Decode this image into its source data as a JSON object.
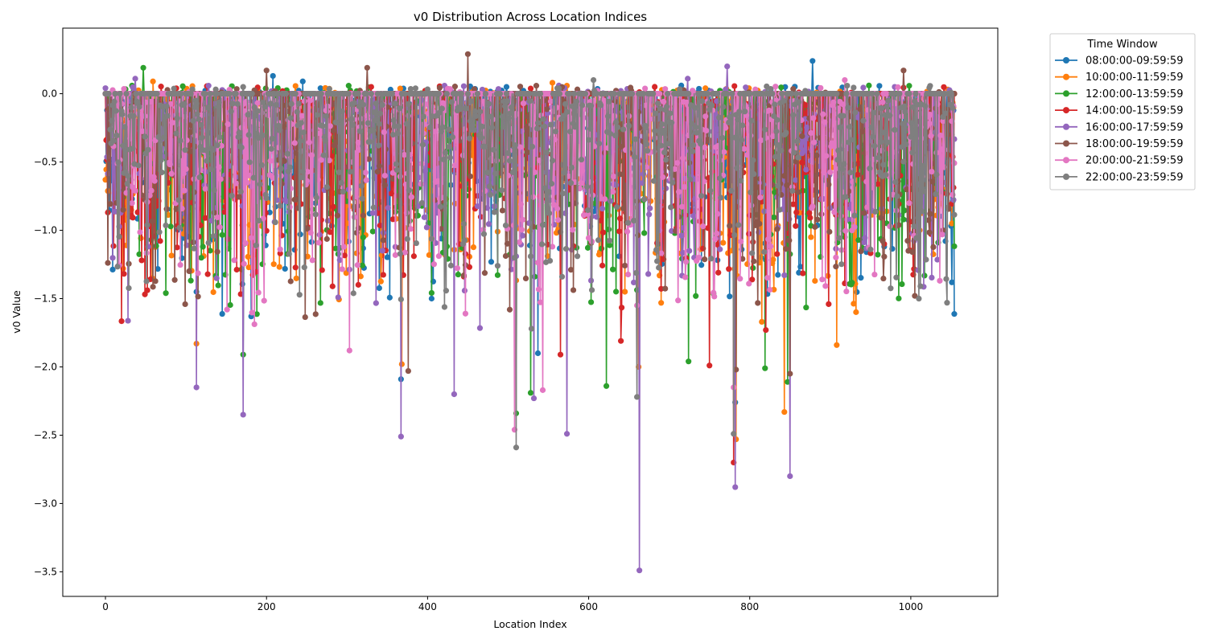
{
  "chart_data": {
    "type": "line",
    "title": "v0 Distribution Across Location Indices",
    "xlabel": "Location Index",
    "ylabel": "v0 Value",
    "xlim": [
      -53,
      1108
    ],
    "ylim": [
      -3.68,
      0.48
    ],
    "x_ticks": [
      0,
      200,
      400,
      600,
      800,
      1000
    ],
    "y_ticks": [
      0.0,
      -0.5,
      -1.0,
      -1.5,
      -2.0,
      -2.5,
      -3.0,
      -3.5
    ],
    "x_tick_labels": [
      "0",
      "200",
      "400",
      "600",
      "800",
      "1000"
    ],
    "y_tick_labels": [
      "0.0",
      "−0.5",
      "−1.0",
      "−1.5",
      "−2.0",
      "−2.5",
      "−3.0",
      "−3.5"
    ],
    "x_range": [
      0,
      1054
    ],
    "marker": "circle",
    "grid": false,
    "legend": {
      "title": "Time Window",
      "placement": "outside-right-top"
    },
    "series": [
      {
        "name": "08:00:00-09:59:59",
        "color": "#1f77b4",
        "extremes": [
          [
            208,
            0.13
          ],
          [
            245,
            0.09
          ],
          [
            878,
            0.24
          ],
          [
            113,
            -1.45
          ],
          [
            367,
            -2.09
          ],
          [
            782,
            -2.26
          ],
          [
            405,
            -1.5
          ],
          [
            1040,
            -0.58
          ],
          [
            888,
            -0.59
          ],
          [
            537,
            -1.9
          ]
        ]
      },
      {
        "name": "10:00:00-11:59:59",
        "color": "#ff7f0e",
        "extremes": [
          [
            59,
            0.09
          ],
          [
            113,
            -1.83
          ],
          [
            368,
            -1.98
          ],
          [
            662,
            -2.0
          ],
          [
            843,
            -2.33
          ],
          [
            783,
            -2.53
          ],
          [
            908,
            -1.84
          ],
          [
            815,
            -1.67
          ],
          [
            555,
            0.08
          ],
          [
            1040,
            -0.7
          ]
        ]
      },
      {
        "name": "12:00:00-13:59:59",
        "color": "#2ca02c",
        "extremes": [
          [
            47,
            0.19
          ],
          [
            15,
            -0.76
          ],
          [
            22,
            -0.76
          ],
          [
            171,
            -1.91
          ],
          [
            510,
            -2.34
          ],
          [
            528,
            -2.19
          ],
          [
            622,
            -2.14
          ],
          [
            724,
            -1.96
          ],
          [
            819,
            -2.01
          ],
          [
            847,
            -2.11
          ],
          [
            1040,
            -0.72
          ],
          [
            948,
            0.06
          ]
        ]
      },
      {
        "name": "14:00:00-15:59:59",
        "color": "#d62728",
        "extremes": [
          [
            45,
            -1.22
          ],
          [
            565,
            -1.91
          ],
          [
            750,
            -1.99
          ],
          [
            780,
            -2.7
          ],
          [
            820,
            -1.73
          ],
          [
            640,
            -1.81
          ],
          [
            1040,
            -0.45
          ],
          [
            330,
            0.05
          ]
        ]
      },
      {
        "name": "16:00:00-17:59:59",
        "color": "#9467bd",
        "extremes": [
          [
            37,
            0.11
          ],
          [
            113,
            -2.15
          ],
          [
            171,
            -2.35
          ],
          [
            367,
            -2.51
          ],
          [
            433,
            -2.2
          ],
          [
            532,
            -2.23
          ],
          [
            573,
            -2.49
          ],
          [
            663,
            -3.49
          ],
          [
            782,
            -2.88
          ],
          [
            850,
            -2.8
          ],
          [
            772,
            0.2
          ],
          [
            723,
            0.11
          ],
          [
            1040,
            -0.65
          ]
        ]
      },
      {
        "name": "18:00:00-19:59:59",
        "color": "#8c564b",
        "extremes": [
          [
            200,
            0.17
          ],
          [
            325,
            0.19
          ],
          [
            450,
            0.29
          ],
          [
            376,
            -2.03
          ],
          [
            850,
            -2.05
          ],
          [
            991,
            0.17
          ],
          [
            1040,
            -1.0
          ],
          [
            1005,
            -1.48
          ],
          [
            783,
            -2.02
          ]
        ]
      },
      {
        "name": "20:00:00-21:59:59",
        "color": "#e377c2",
        "extremes": [
          [
            303,
            -1.88
          ],
          [
            508,
            -2.46
          ],
          [
            543,
            -2.17
          ],
          [
            780,
            -2.15
          ],
          [
            660,
            -1.55
          ],
          [
            918,
            0.1
          ],
          [
            1040,
            -0.2
          ]
        ]
      },
      {
        "name": "22:00:00-23:59:59",
        "color": "#7f7f7f",
        "extremes": [
          [
            510,
            -2.59
          ],
          [
            660,
            -2.22
          ],
          [
            780,
            -2.49
          ],
          [
            606,
            0.1
          ],
          [
            1040,
            -0.17
          ]
        ]
      }
    ]
  }
}
